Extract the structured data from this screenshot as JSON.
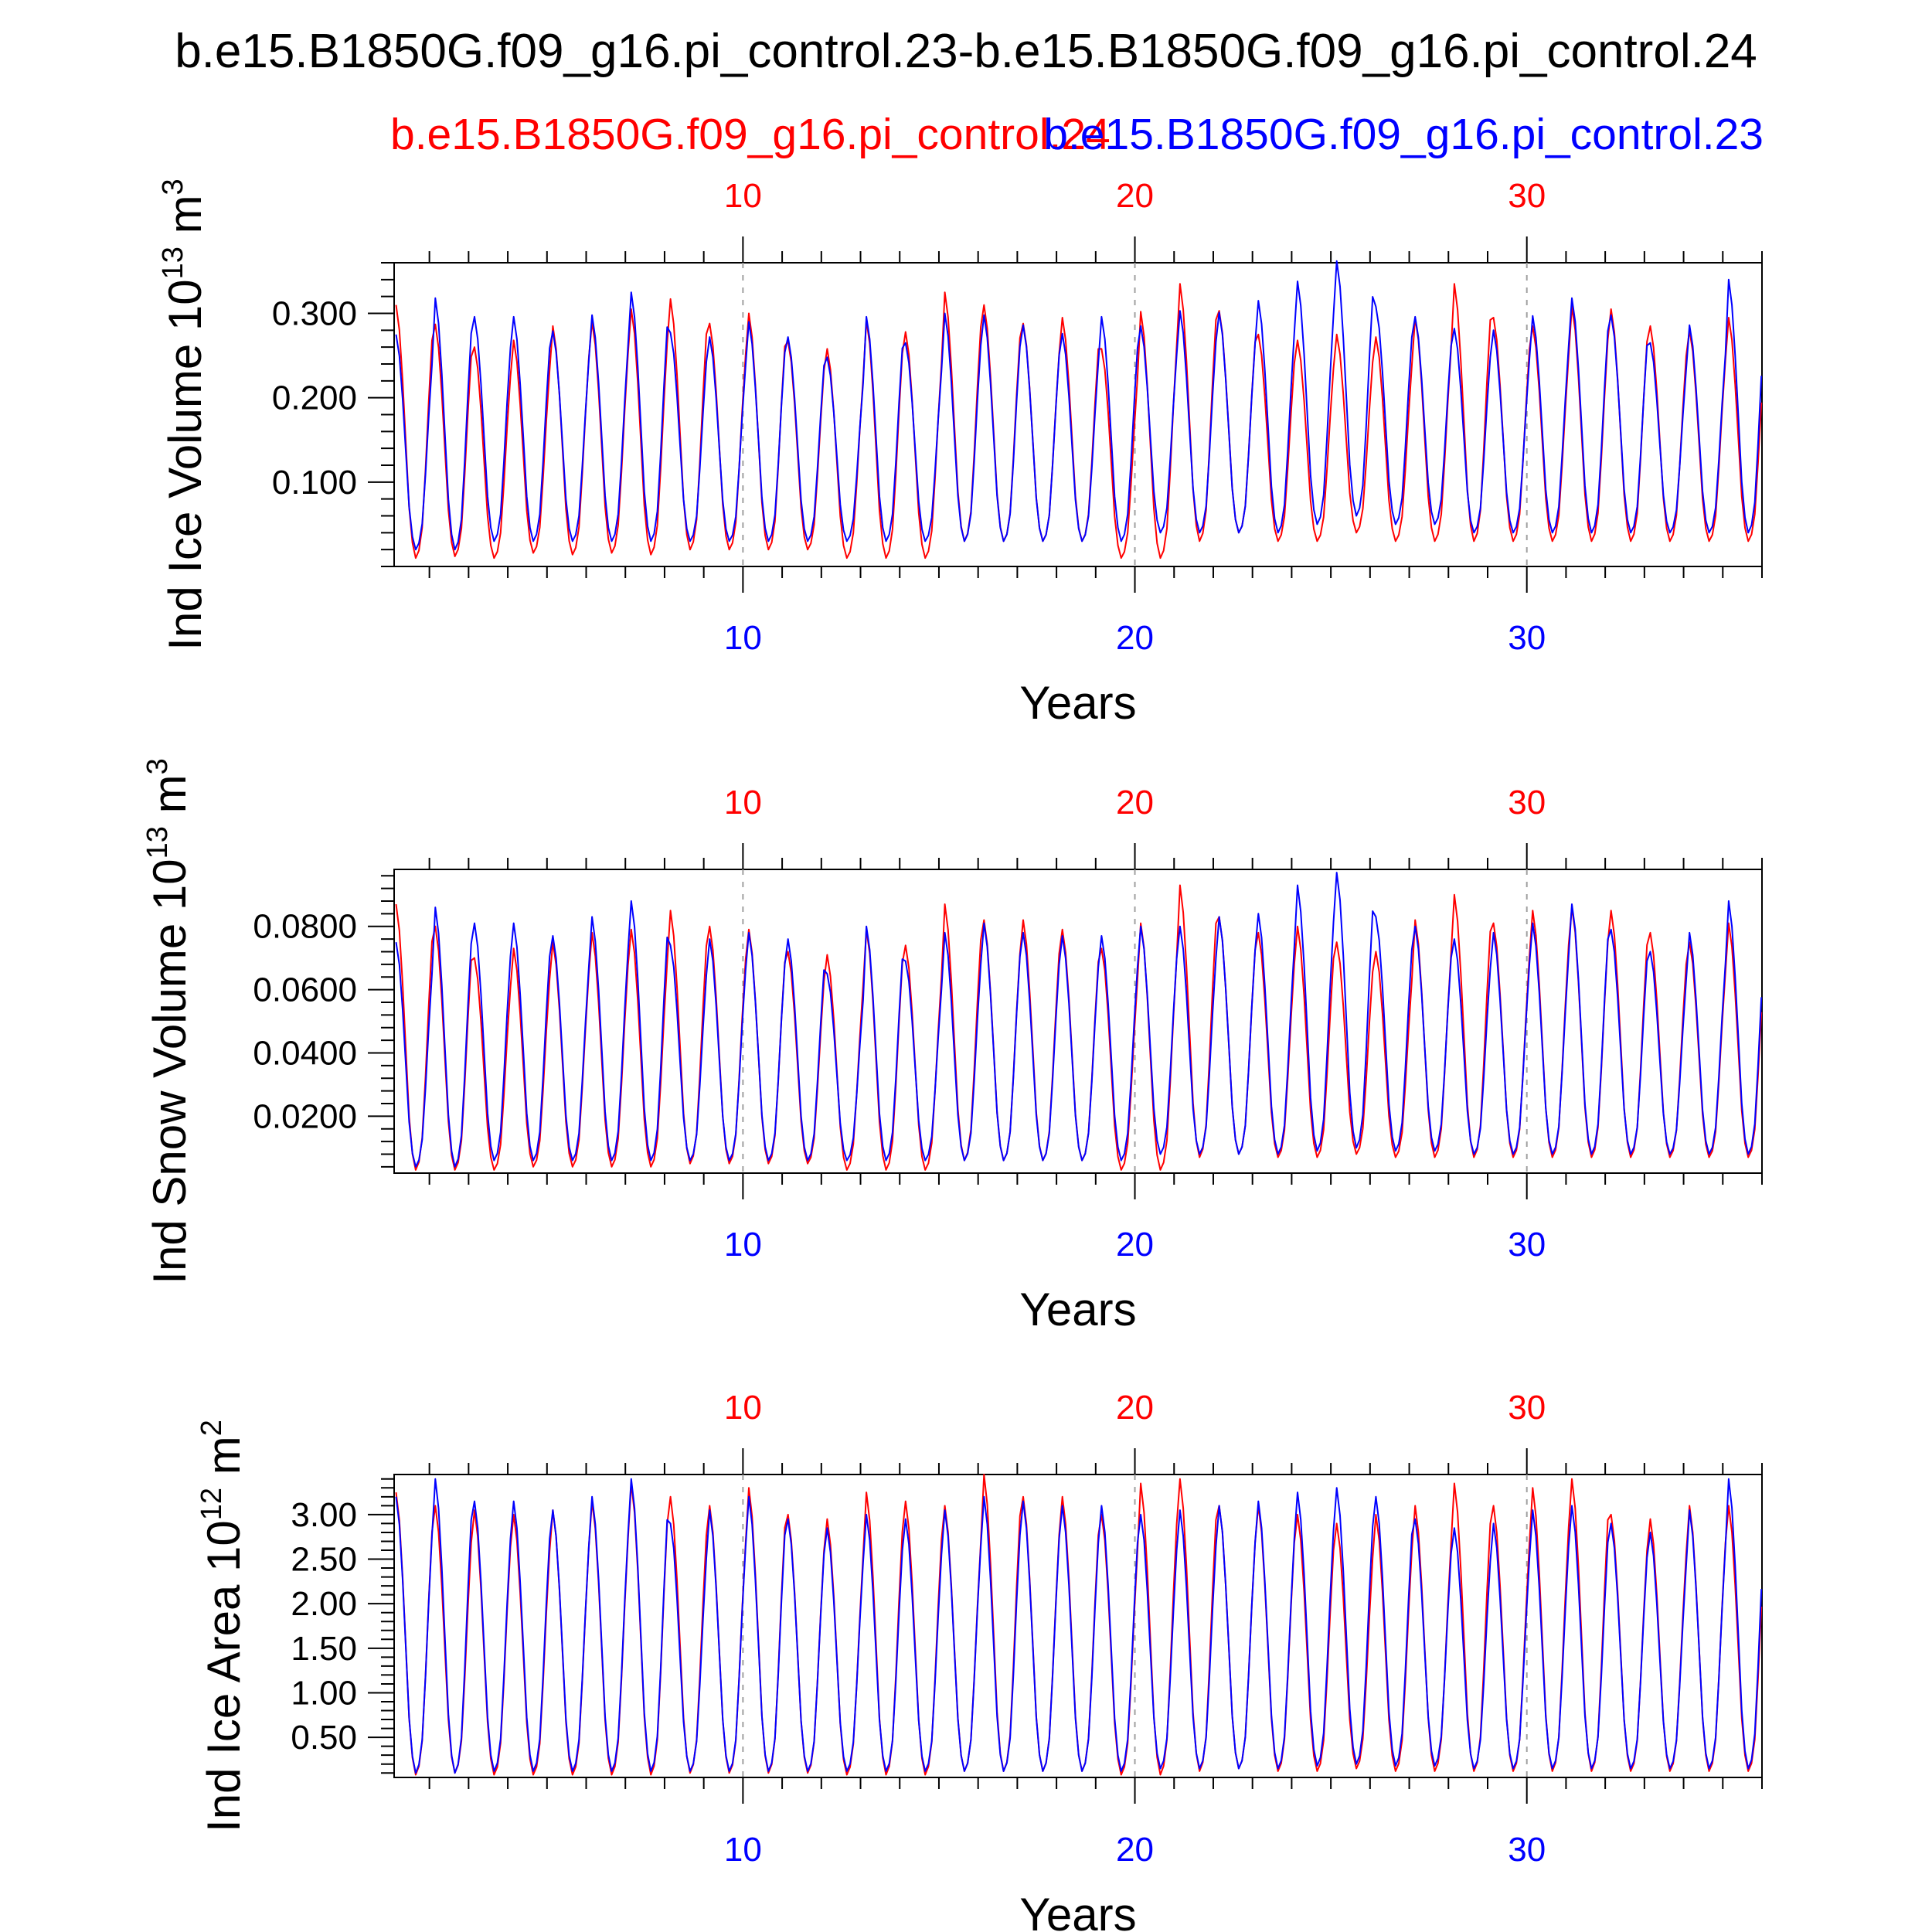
{
  "title": "b.e15.B1850G.f09_g16.pi_control.23-b.e15.B1850G.f09_g16.pi_control.24",
  "legend": {
    "red_case": "b.e15.B1850G.f09_g16.pi_control.24",
    "blue_case": "b.e15.B1850G.f09_g16.pi_control.23"
  },
  "colors": {
    "red": "#ff0000",
    "blue": "#0000ff",
    "frame": "#000000",
    "grid": "#a0a0a0"
  },
  "chart_data": [
    {
      "type": "line",
      "ylabel_main": "Ind Ice Volume 10",
      "ylabel_exp": "13",
      "ylabel_unit": " m",
      "ylabel_unit_exp": "3",
      "xlabel": "Years",
      "xlim": [
        1.1,
        36.0
      ],
      "ylim": [
        0.0,
        0.36
      ],
      "x_ticks": [
        10,
        20,
        30
      ],
      "x_tick_labels": [
        "10",
        "20",
        "30"
      ],
      "y_ticks": [
        0.1,
        0.2,
        0.3
      ],
      "y_tick_labels": [
        "0.100",
        "0.200",
        "0.300"
      ],
      "y_minor_step": 0.02,
      "series": [
        {
          "name": "b.e15.B1850G.f09_g16.pi_control.24",
          "color": "red",
          "base": 0.014,
          "peaks": [
            0.31,
            0.287,
            0.26,
            0.268,
            0.285,
            0.29,
            0.305,
            0.317,
            0.288,
            0.3,
            0.267,
            0.258,
            0.292,
            0.278,
            0.325,
            0.31,
            0.288,
            0.295,
            0.258,
            0.302,
            0.335,
            0.303,
            0.275,
            0.268,
            0.275,
            0.272,
            0.295,
            0.335,
            0.295,
            0.285,
            0.308,
            0.305,
            0.285,
            0.28,
            0.295
          ],
          "troughs": [
            0.01,
            0.012,
            0.01,
            0.016,
            0.014,
            0.016,
            0.014,
            0.02,
            0.02,
            0.02,
            0.02,
            0.01,
            0.01,
            0.01,
            0.03,
            0.03,
            0.03,
            0.03,
            0.01,
            0.01,
            0.03,
            0.04,
            0.03,
            0.03,
            0.04,
            0.03,
            0.03,
            0.03,
            0.03,
            0.03,
            0.03,
            0.03,
            0.03,
            0.03,
            0.03
          ]
        },
        {
          "name": "b.e15.B1850G.f09_g16.pi_control.23",
          "color": "blue",
          "base": 0.02,
          "peaks": [
            0.275,
            0.318,
            0.296,
            0.296,
            0.279,
            0.298,
            0.325,
            0.277,
            0.272,
            0.29,
            0.272,
            0.248,
            0.296,
            0.265,
            0.3,
            0.298,
            0.286,
            0.276,
            0.296,
            0.285,
            0.303,
            0.301,
            0.315,
            0.338,
            0.362,
            0.308,
            0.296,
            0.282,
            0.28,
            0.297,
            0.318,
            0.298,
            0.265,
            0.286,
            0.34
          ],
          "troughs": [
            0.02,
            0.02,
            0.03,
            0.03,
            0.03,
            0.03,
            0.03,
            0.03,
            0.03,
            0.03,
            0.03,
            0.03,
            0.03,
            0.03,
            0.03,
            0.03,
            0.03,
            0.03,
            0.03,
            0.04,
            0.04,
            0.04,
            0.04,
            0.05,
            0.06,
            0.05,
            0.05,
            0.04,
            0.04,
            0.04,
            0.04,
            0.04,
            0.04,
            0.04,
            0.04
          ]
        }
      ]
    },
    {
      "type": "line",
      "ylabel_main": "Ind Snow Volume 10",
      "ylabel_exp": "13",
      "ylabel_unit": " m",
      "ylabel_unit_exp": "3",
      "xlabel": "Years",
      "xlim": [
        1.1,
        36.0
      ],
      "ylim": [
        0.002,
        0.098
      ],
      "x_ticks": [
        10,
        20,
        30
      ],
      "x_tick_labels": [
        "10",
        "20",
        "30"
      ],
      "y_ticks": [
        0.02,
        0.04,
        0.06,
        0.08
      ],
      "y_tick_labels": [
        "0.0200",
        "0.0400",
        "0.0600",
        "0.0800"
      ],
      "y_minor_step": 0.004,
      "series": [
        {
          "name": "b.e15.B1850G.f09_g16.pi_control.24",
          "color": "red",
          "base": 0.004,
          "peaks": [
            0.087,
            0.08,
            0.07,
            0.073,
            0.075,
            0.078,
            0.079,
            0.085,
            0.08,
            0.079,
            0.072,
            0.071,
            0.079,
            0.074,
            0.087,
            0.082,
            0.082,
            0.079,
            0.073,
            0.081,
            0.093,
            0.083,
            0.078,
            0.08,
            0.075,
            0.072,
            0.082,
            0.09,
            0.081,
            0.085,
            0.086,
            0.085,
            0.078,
            0.075,
            0.081
          ],
          "troughs": [
            0.003,
            0.003,
            0.003,
            0.004,
            0.004,
            0.004,
            0.004,
            0.005,
            0.005,
            0.005,
            0.005,
            0.003,
            0.003,
            0.003,
            0.006,
            0.006,
            0.006,
            0.006,
            0.003,
            0.003,
            0.007,
            0.008,
            0.007,
            0.007,
            0.008,
            0.007,
            0.007,
            0.007,
            0.007,
            0.007,
            0.007,
            0.007,
            0.007,
            0.007,
            0.007
          ]
        },
        {
          "name": "b.e15.B1850G.f09_g16.pi_control.23",
          "color": "blue",
          "base": 0.005,
          "peaks": [
            0.075,
            0.086,
            0.081,
            0.081,
            0.077,
            0.083,
            0.088,
            0.074,
            0.076,
            0.078,
            0.076,
            0.065,
            0.08,
            0.069,
            0.078,
            0.081,
            0.078,
            0.077,
            0.077,
            0.08,
            0.08,
            0.083,
            0.084,
            0.093,
            0.097,
            0.083,
            0.08,
            0.076,
            0.078,
            0.081,
            0.087,
            0.079,
            0.072,
            0.078,
            0.088
          ],
          "troughs": [
            0.004,
            0.004,
            0.006,
            0.006,
            0.006,
            0.006,
            0.006,
            0.006,
            0.006,
            0.006,
            0.006,
            0.006,
            0.006,
            0.006,
            0.006,
            0.006,
            0.006,
            0.006,
            0.006,
            0.008,
            0.008,
            0.008,
            0.008,
            0.009,
            0.01,
            0.009,
            0.009,
            0.008,
            0.008,
            0.008,
            0.008,
            0.008,
            0.008,
            0.008,
            0.008
          ]
        }
      ]
    },
    {
      "type": "line",
      "ylabel_main": "Ind Ice Area 10",
      "ylabel_exp": "12",
      "ylabel_unit": " m",
      "ylabel_unit_exp": "2",
      "xlabel": "Years",
      "xlim": [
        1.1,
        36.0
      ],
      "ylim": [
        0.05,
        3.45
      ],
      "x_ticks": [
        10,
        20,
        30
      ],
      "x_tick_labels": [
        "10",
        "20",
        "30"
      ],
      "y_ticks": [
        0.5,
        1.0,
        1.5,
        2.0,
        2.5,
        3.0
      ],
      "y_tick_labels": [
        "0.50",
        "1.00",
        "1.50",
        "2.00",
        "2.50",
        "3.00"
      ],
      "y_minor_step": 0.1,
      "series": [
        {
          "name": "b.e15.B1850G.f09_g16.pi_control.24",
          "color": "red",
          "base": 0.1,
          "peaks": [
            3.25,
            3.1,
            3.05,
            3.0,
            3.05,
            3.15,
            3.35,
            3.2,
            3.1,
            3.3,
            3.0,
            2.95,
            3.25,
            3.15,
            3.1,
            3.45,
            3.2,
            3.2,
            3.0,
            3.35,
            3.4,
            3.1,
            3.1,
            3.0,
            2.9,
            3.0,
            3.1,
            3.35,
            3.1,
            3.3,
            3.4,
            3.0,
            2.95,
            3.1,
            3.1
          ],
          "troughs": [
            0.08,
            0.1,
            0.08,
            0.08,
            0.08,
            0.08,
            0.08,
            0.1,
            0.1,
            0.1,
            0.1,
            0.08,
            0.08,
            0.08,
            0.12,
            0.12,
            0.12,
            0.12,
            0.08,
            0.08,
            0.12,
            0.15,
            0.12,
            0.12,
            0.15,
            0.12,
            0.12,
            0.12,
            0.12,
            0.12,
            0.12,
            0.12,
            0.12,
            0.12,
            0.12
          ]
        },
        {
          "name": "b.e15.B1850G.f09_g16.pi_control.23",
          "color": "blue",
          "base": 0.1,
          "peaks": [
            3.2,
            3.4,
            3.15,
            3.15,
            3.05,
            3.2,
            3.4,
            2.9,
            3.05,
            3.2,
            2.95,
            2.85,
            3.0,
            2.95,
            3.05,
            3.2,
            3.15,
            3.1,
            3.1,
            3.0,
            3.05,
            3.1,
            3.15,
            3.25,
            3.3,
            3.2,
            2.95,
            2.85,
            2.9,
            3.05,
            3.1,
            2.9,
            2.8,
            3.05,
            3.4
          ],
          "troughs": [
            0.1,
            0.1,
            0.12,
            0.12,
            0.12,
            0.12,
            0.12,
            0.12,
            0.12,
            0.12,
            0.12,
            0.12,
            0.12,
            0.12,
            0.12,
            0.12,
            0.12,
            0.12,
            0.12,
            0.15,
            0.15,
            0.15,
            0.15,
            0.18,
            0.2,
            0.18,
            0.18,
            0.15,
            0.15,
            0.15,
            0.15,
            0.15,
            0.15,
            0.15,
            0.15
          ]
        }
      ]
    }
  ]
}
